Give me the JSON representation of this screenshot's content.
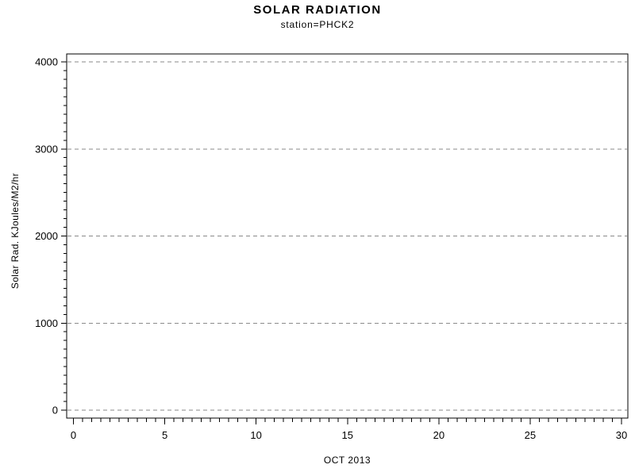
{
  "chart_data": {
    "type": "line",
    "title": "SOLAR RADIATION",
    "subtitle": "station=PHCK2",
    "xlabel": "OCT 2013",
    "ylabel": "Solar Rad. KJoules/M2/hr",
    "xlim": [
      0,
      30
    ],
    "ylim": [
      0,
      4000
    ],
    "x_ticks": [
      0,
      5,
      10,
      15,
      20,
      25,
      30
    ],
    "x_tick_labels": [
      "0",
      "5",
      "10",
      "15",
      "20",
      "25",
      "30"
    ],
    "x_minor_step": 0.5,
    "y_ticks": [
      0,
      1000,
      2000,
      3000,
      4000
    ],
    "y_tick_labels": [
      "0",
      "1000",
      "2000",
      "3000",
      "4000"
    ],
    "y_minor_step": 100,
    "grid": "horizontal dashed gridlines at major y ticks only",
    "legend_position": "none",
    "series": [],
    "plot_is_empty": true,
    "colors": {
      "background": "#ffffff",
      "axis": "#000000",
      "text": "#000000",
      "gridline": "#8a8a8a"
    }
  }
}
